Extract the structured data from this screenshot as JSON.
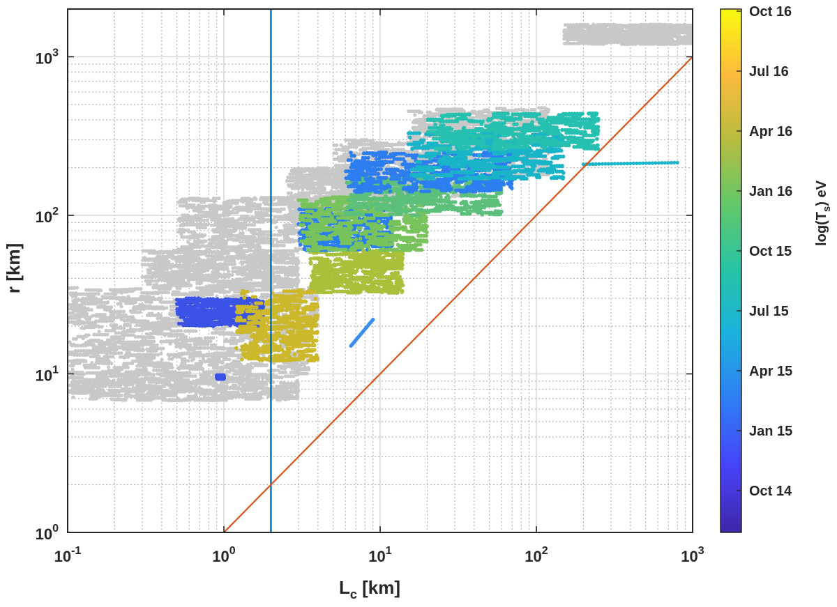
{
  "chart_data": {
    "type": "scatter",
    "xlabel": "L",
    "xlabel_sub": "c",
    "xlabel_unit": " [km]",
    "ylabel": "r [km]",
    "x_scale": "log",
    "y_scale": "log",
    "xlim": [
      0.1,
      1000
    ],
    "ylim": [
      1,
      2000
    ],
    "grid": true,
    "x_ticks": [
      {
        "value": 0.1,
        "base": "10",
        "exp": "-1"
      },
      {
        "value": 1,
        "base": "10",
        "exp": "0"
      },
      {
        "value": 10,
        "base": "10",
        "exp": "1"
      },
      {
        "value": 100,
        "base": "10",
        "exp": "2"
      },
      {
        "value": 1000,
        "base": "10",
        "exp": "3"
      }
    ],
    "y_ticks": [
      {
        "value": 1,
        "base": "10",
        "exp": "0"
      },
      {
        "value": 10,
        "base": "10",
        "exp": "1"
      },
      {
        "value": 100,
        "base": "10",
        "exp": "2"
      },
      {
        "value": 1000,
        "base": "10",
        "exp": "3"
      }
    ],
    "vertical_line": {
      "x": 2,
      "color": "#0072BD"
    },
    "diagonal_line": {
      "x": [
        1,
        1000
      ],
      "y": [
        1,
        1000
      ],
      "color": "#D95319"
    },
    "gray_color": "#c8c8c8",
    "gray_clusters": [
      {
        "x": [
          0.1,
          3.0
        ],
        "y": [
          6.8,
          10
        ]
      },
      {
        "x": [
          0.1,
          3.5
        ],
        "y": [
          10,
          20
        ]
      },
      {
        "x": [
          0.1,
          4
        ],
        "y": [
          20,
          35
        ]
      },
      {
        "x": [
          0.3,
          3
        ],
        "y": [
          35,
          60
        ]
      },
      {
        "x": [
          0.5,
          6
        ],
        "y": [
          60,
          130
        ]
      },
      {
        "x": [
          2.5,
          15
        ],
        "y": [
          100,
          200
        ]
      },
      {
        "x": [
          5,
          40
        ],
        "y": [
          130,
          300
        ]
      },
      {
        "x": [
          15,
          120
        ],
        "y": [
          180,
          480
        ]
      },
      {
        "x": [
          150,
          1000
        ],
        "y": [
          1200,
          1600
        ]
      }
    ],
    "color_clusters": [
      {
        "x": [
          0.5,
          1.8
        ],
        "y": [
          20,
          30
        ],
        "color": "#3a52e6"
      },
      {
        "x": [
          0.9,
          1.0
        ],
        "y": [
          9.3,
          9.8
        ],
        "color": "#3a52e6"
      },
      {
        "x": [
          1.2,
          4
        ],
        "y": [
          12,
          34
        ],
        "color": "#cdb82c"
      },
      {
        "x": [
          3.5,
          14
        ],
        "y": [
          32,
          60
        ],
        "color": "#a9c03a"
      },
      {
        "x": [
          3,
          12
        ],
        "y": [
          60,
          110
        ],
        "color": "#2a7ff0"
      },
      {
        "x": [
          3,
          20
        ],
        "y": [
          60,
          130
        ],
        "color": "#79c35c"
      },
      {
        "x": [
          6,
          60
        ],
        "y": [
          100,
          180
        ],
        "color": "#5cc07a"
      },
      {
        "x": [
          6,
          70
        ],
        "y": [
          140,
          250
        ],
        "color": "#2d7ef0"
      },
      {
        "x": [
          15,
          150
        ],
        "y": [
          170,
          330
        ],
        "color": "#19b4c8"
      },
      {
        "x": [
          20,
          250
        ],
        "y": [
          260,
          440
        ],
        "color": "#26c0b0"
      }
    ],
    "scatter_lines": [
      {
        "x": [
          6.5,
          9
        ],
        "y": [
          15,
          22
        ],
        "color": "#3b8ef0"
      },
      {
        "x": [
          200,
          800
        ],
        "y": [
          210,
          215
        ],
        "color": "#19b4c8"
      }
    ],
    "colorbar": {
      "label": "log(T",
      "label_sub": "s",
      "label_suffix": ") eV",
      "colors": [
        "#3e26a8",
        "#4743f8",
        "#2f7cf5",
        "#1cb0e0",
        "#25c4a6",
        "#63c86a",
        "#b7bd3f",
        "#fdbb3d",
        "#f8fa0d"
      ],
      "ticks": [
        "Oct 14",
        "Jan 15",
        "Apr 15",
        "Jul 15",
        "Oct 15",
        "Jan 16",
        "Apr 16",
        "Jul 16",
        "Oct 16"
      ]
    }
  }
}
